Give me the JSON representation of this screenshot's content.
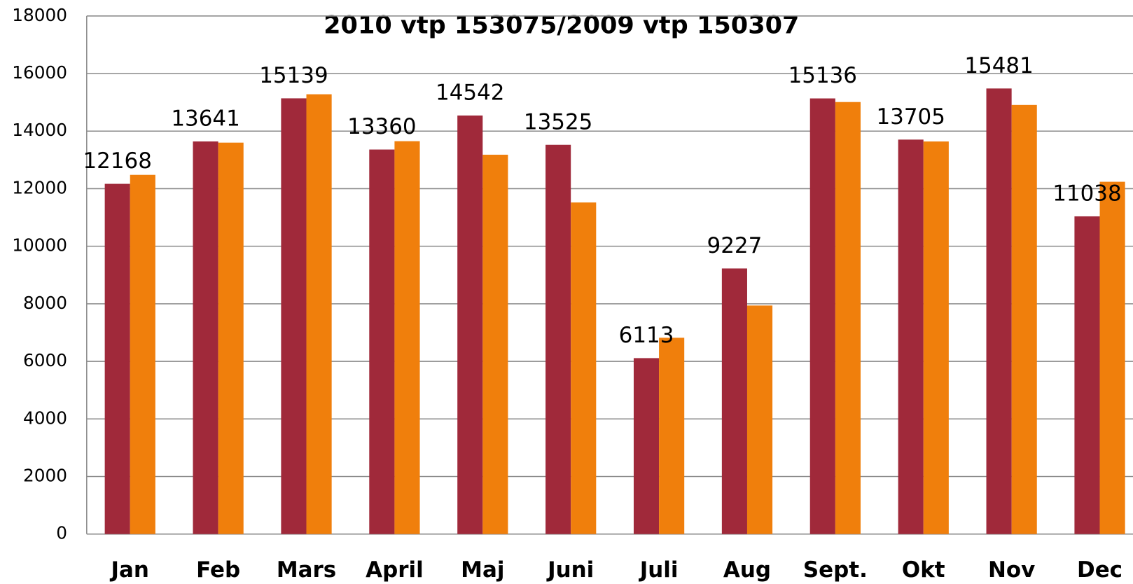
{
  "chart_data": {
    "type": "bar",
    "title": "2010 vtp 153075/2009 vtp 150307",
    "categories": [
      "Jan",
      "Feb",
      "Mars",
      "April",
      "Maj",
      "Juni",
      "Juli",
      "Aug",
      "Sept.",
      "Okt",
      "Nov",
      "Dec"
    ],
    "series": [
      {
        "color": "#a0293a",
        "values": [
          12168,
          13641,
          15139,
          13360,
          14542,
          13525,
          6113,
          9227,
          15136,
          13705,
          15481,
          11038
        ]
      },
      {
        "color": "#f07f0c",
        "values": [
          12480,
          13600,
          15280,
          13650,
          13180,
          11520,
          6820,
          7940,
          15010,
          13640,
          14910,
          12240
        ]
      }
    ],
    "ylim": [
      0,
      18000
    ],
    "yticks": [
      0,
      2000,
      4000,
      6000,
      8000,
      10000,
      12000,
      14000,
      16000,
      18000
    ],
    "grid": true
  }
}
